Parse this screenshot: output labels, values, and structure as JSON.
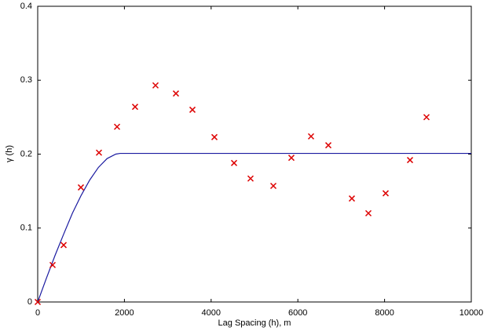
{
  "chart_data": {
    "type": "scatter",
    "x_label": "Lag Spacing (h), m",
    "y_label": "γ (h)",
    "xlim": [
      0,
      10000
    ],
    "ylim": [
      0,
      0.4
    ],
    "xticks": [
      0,
      2000,
      4000,
      6000,
      8000,
      10000
    ],
    "yticks": [
      0,
      0.1,
      0.2,
      0.3,
      0.4
    ],
    "grid": false,
    "series": [
      {
        "kind": "markers",
        "color": "#dd0000",
        "x": [
          0,
          344,
          598,
          996,
          1413,
          1830,
          2246,
          2717,
          3188,
          3569,
          4076,
          4529,
          4909,
          5435,
          5851,
          6304,
          6703,
          7246,
          7627,
          8025,
          8587,
          8967
        ],
        "values": [
          0,
          0.05,
          0.077,
          0.155,
          0.202,
          0.237,
          0.264,
          0.293,
          0.282,
          0.26,
          0.223,
          0.188,
          0.167,
          0.157,
          0.195,
          0.224,
          0.212,
          0.14,
          0.12,
          0.147,
          0.192,
          0.25
        ]
      },
      {
        "kind": "line",
        "color": "#1a1aa0",
        "x": [
          0,
          200,
          400,
          600,
          800,
          1000,
          1200,
          1400,
          1600,
          1800,
          1900,
          10000
        ],
        "values": [
          0,
          0.032,
          0.063,
          0.092,
          0.12,
          0.144,
          0.165,
          0.182,
          0.194,
          0.2,
          0.201,
          0.201
        ]
      }
    ]
  }
}
